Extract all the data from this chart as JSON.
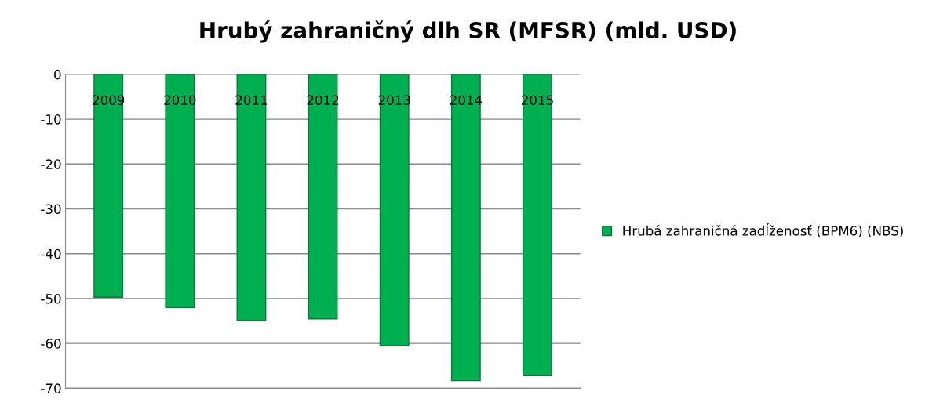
{
  "chart_data": {
    "type": "bar",
    "title": "Hrubý zahraničný dlh SR (MFSR) (mld. USD)",
    "categories": [
      "2009",
      "2010",
      "2011",
      "2012",
      "2013",
      "2014",
      "2015"
    ],
    "series": [
      {
        "name": "Hrubá zahraničná zadĺženosť (BPM6) (NBS)",
        "color": "#00b050",
        "values": [
          -49.7,
          -52.0,
          -54.9,
          -54.5,
          -60.5,
          -68.3,
          -67.2
        ]
      }
    ],
    "ylim": [
      -70,
      0
    ],
    "yticks": [
      -70,
      -60,
      -50,
      -40,
      -30,
      -20,
      -10,
      0
    ],
    "grid": "y",
    "legend": "right"
  }
}
